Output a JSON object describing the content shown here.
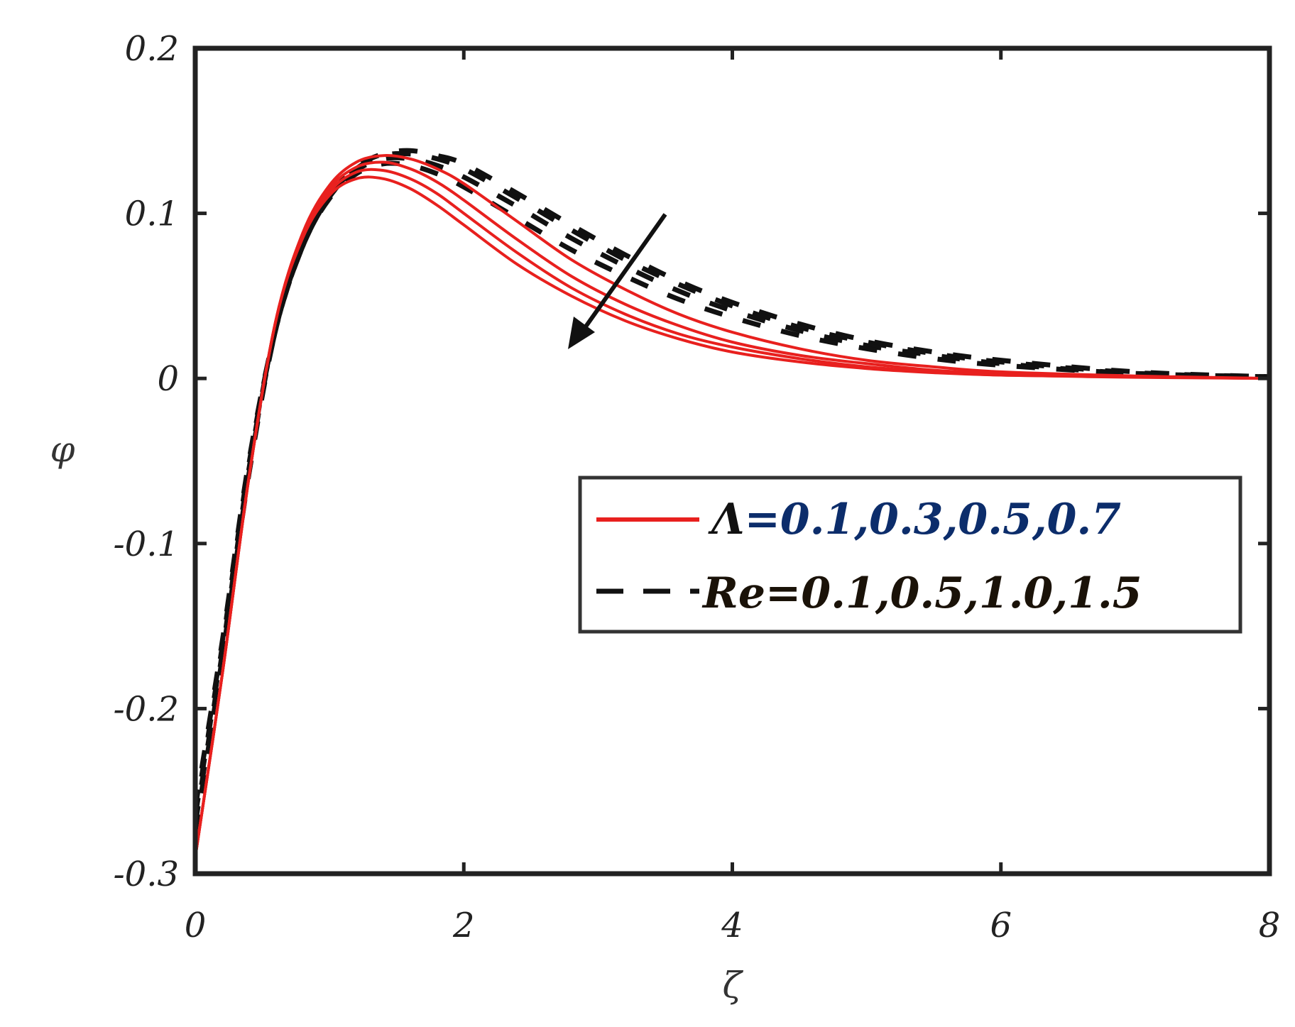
{
  "chart_data": {
    "type": "line",
    "xlabel": "ζ",
    "ylabel": "φ",
    "xlim": [
      0,
      8
    ],
    "ylim": [
      -0.3,
      0.2
    ],
    "xticks": [
      "0",
      "2",
      "4",
      "6",
      "8"
    ],
    "yticks": [
      "-0.3",
      "-0.2",
      "-0.1",
      "0",
      "0.1",
      "0.2"
    ],
    "grid": false,
    "legend": {
      "placement": "center-right",
      "entries": [
        {
          "symbol": "Λ",
          "values": "=0.1,0.3,0.5,0.7",
          "style": "solid",
          "color": "#e8201e"
        },
        {
          "symbol": "Re",
          "values": "=0.1,0.5,1.0,1.5",
          "style": "dashed",
          "color": "#111111"
        }
      ]
    },
    "annotation": "arrow indicating increasing parameter direction",
    "series": [
      {
        "group": "Lambda",
        "style": "solid",
        "color": "#e8201e",
        "x": [
          0,
          0.2,
          0.4,
          0.6,
          0.8,
          1.0,
          1.2,
          1.4,
          1.6,
          1.8,
          2.0,
          2.4,
          2.8,
          3.2,
          3.6,
          4.0,
          4.5,
          5.0,
          5.5,
          6.0,
          7.0,
          8.0
        ],
        "y": [
          -0.29,
          -0.18,
          -0.06,
          0.035,
          0.088,
          0.117,
          0.131,
          0.135,
          0.133,
          0.127,
          0.118,
          0.095,
          0.072,
          0.054,
          0.039,
          0.028,
          0.018,
          0.011,
          0.007,
          0.004,
          0.0015,
          0.0
        ]
      },
      {
        "group": "Lambda",
        "style": "solid",
        "color": "#e8201e",
        "x": [
          0,
          0.2,
          0.4,
          0.6,
          0.8,
          1.0,
          1.2,
          1.4,
          1.6,
          1.8,
          2.0,
          2.4,
          2.8,
          3.2,
          3.6,
          4.0,
          4.5,
          5.0,
          5.5,
          6.0,
          7.0,
          8.0
        ],
        "y": [
          -0.29,
          -0.18,
          -0.06,
          0.035,
          0.087,
          0.115,
          0.128,
          0.131,
          0.127,
          0.119,
          0.108,
          0.084,
          0.062,
          0.045,
          0.032,
          0.022,
          0.014,
          0.009,
          0.005,
          0.003,
          0.001,
          0.0
        ]
      },
      {
        "group": "Lambda",
        "style": "solid",
        "color": "#e8201e",
        "x": [
          0,
          0.2,
          0.4,
          0.6,
          0.8,
          1.0,
          1.2,
          1.4,
          1.6,
          1.8,
          2.0,
          2.4,
          2.8,
          3.2,
          3.6,
          4.0,
          4.5,
          5.0,
          5.5,
          6.0,
          7.0,
          8.0
        ],
        "y": [
          -0.29,
          -0.18,
          -0.06,
          0.035,
          0.086,
          0.113,
          0.125,
          0.126,
          0.121,
          0.112,
          0.1,
          0.076,
          0.055,
          0.039,
          0.027,
          0.019,
          0.012,
          0.007,
          0.004,
          0.002,
          0.001,
          0.0
        ]
      },
      {
        "group": "Lambda",
        "style": "solid",
        "color": "#e8201e",
        "x": [
          0,
          0.2,
          0.4,
          0.6,
          0.8,
          1.0,
          1.2,
          1.4,
          1.6,
          1.8,
          2.0,
          2.4,
          2.8,
          3.2,
          3.6,
          4.0,
          4.5,
          5.0,
          5.5,
          6.0,
          7.0,
          8.0
        ],
        "y": [
          -0.29,
          -0.18,
          -0.06,
          0.035,
          0.085,
          0.111,
          0.121,
          0.121,
          0.115,
          0.105,
          0.093,
          0.069,
          0.05,
          0.035,
          0.024,
          0.016,
          0.01,
          0.006,
          0.0035,
          0.002,
          0.0007,
          0.0
        ]
      },
      {
        "group": "Re",
        "style": "dashed",
        "color": "#111111",
        "x": [
          0,
          0.2,
          0.4,
          0.6,
          0.8,
          1.0,
          1.2,
          1.4,
          1.6,
          1.8,
          2.0,
          2.4,
          2.8,
          3.2,
          3.6,
          4.0,
          4.5,
          5.0,
          5.5,
          6.0,
          7.0,
          8.0
        ],
        "y": [
          -0.26,
          -0.16,
          -0.05,
          0.03,
          0.08,
          0.11,
          0.128,
          0.136,
          0.138,
          0.135,
          0.13,
          0.112,
          0.093,
          0.075,
          0.059,
          0.046,
          0.033,
          0.023,
          0.016,
          0.011,
          0.004,
          0.001
        ]
      },
      {
        "group": "Re",
        "style": "dashed",
        "color": "#111111",
        "x": [
          0,
          0.2,
          0.4,
          0.6,
          0.8,
          1.0,
          1.2,
          1.4,
          1.6,
          1.8,
          2.0,
          2.4,
          2.8,
          3.2,
          3.6,
          4.0,
          4.5,
          5.0,
          5.5,
          6.0,
          7.0,
          8.0
        ],
        "y": [
          -0.265,
          -0.163,
          -0.052,
          0.03,
          0.08,
          0.11,
          0.127,
          0.135,
          0.136,
          0.133,
          0.127,
          0.109,
          0.09,
          0.072,
          0.057,
          0.044,
          0.031,
          0.022,
          0.015,
          0.01,
          0.0035,
          0.001
        ]
      },
      {
        "group": "Re",
        "style": "dashed",
        "color": "#111111",
        "x": [
          0,
          0.2,
          0.4,
          0.6,
          0.8,
          1.0,
          1.2,
          1.4,
          1.6,
          1.8,
          2.0,
          2.4,
          2.8,
          3.2,
          3.6,
          4.0,
          4.5,
          5.0,
          5.5,
          6.0,
          7.0,
          8.0
        ],
        "y": [
          -0.27,
          -0.167,
          -0.055,
          0.03,
          0.08,
          0.11,
          0.126,
          0.133,
          0.133,
          0.129,
          0.122,
          0.104,
          0.085,
          0.068,
          0.053,
          0.041,
          0.029,
          0.02,
          0.014,
          0.009,
          0.003,
          0.001
        ]
      },
      {
        "group": "Re",
        "style": "dashed",
        "color": "#111111",
        "x": [
          0,
          0.2,
          0.4,
          0.6,
          0.8,
          1.0,
          1.2,
          1.4,
          1.6,
          1.8,
          2.0,
          2.4,
          2.8,
          3.2,
          3.6,
          4.0,
          4.5,
          5.0,
          5.5,
          6.0,
          7.0,
          8.0
        ],
        "y": [
          -0.275,
          -0.17,
          -0.058,
          0.03,
          0.08,
          0.109,
          0.124,
          0.13,
          0.129,
          0.124,
          0.116,
          0.097,
          0.078,
          0.062,
          0.048,
          0.037,
          0.026,
          0.018,
          0.012,
          0.008,
          0.003,
          0.001
        ]
      }
    ]
  }
}
